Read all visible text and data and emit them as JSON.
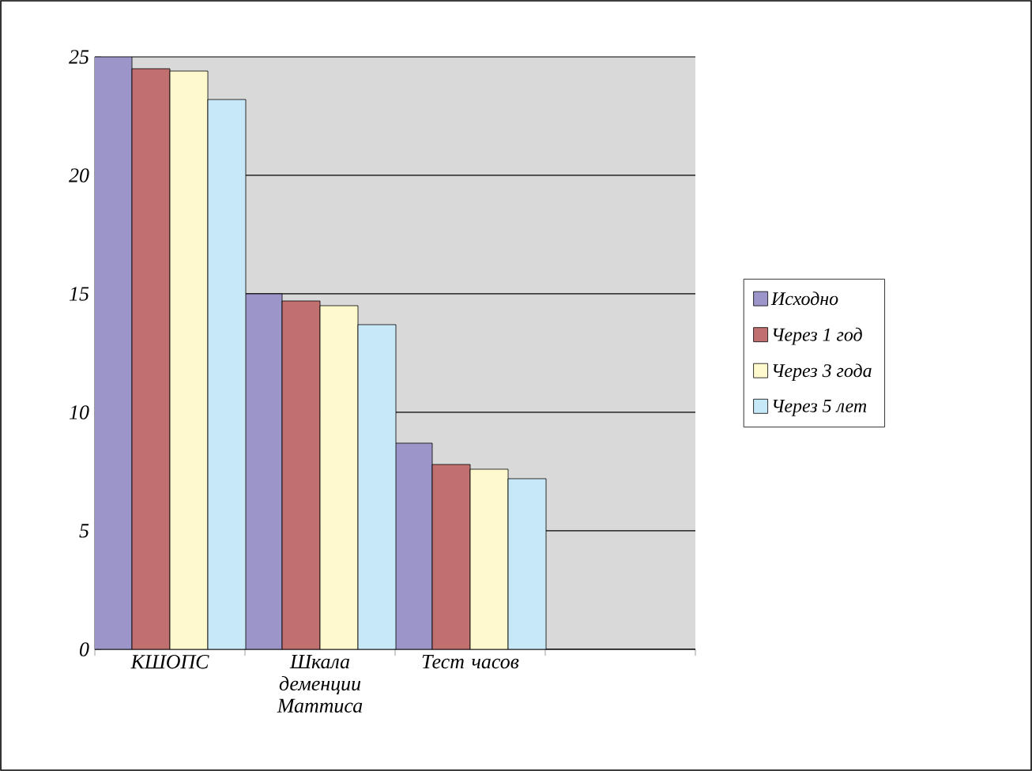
{
  "chart_data": {
    "type": "bar",
    "categories": [
      "КШОПС",
      "Шкала деменции Маттиса",
      "Тест часов",
      null
    ],
    "series": [
      {
        "name": "Исходно",
        "color": "#9b95c9",
        "values": [
          25.0,
          15.0,
          8.7,
          null
        ]
      },
      {
        "name": "Через 1 год",
        "color": "#c0706f",
        "values": [
          24.5,
          14.7,
          7.8,
          null
        ]
      },
      {
        "name": "Через 3 года",
        "color": "#fffacd",
        "values": [
          24.4,
          14.5,
          7.6,
          null
        ]
      },
      {
        "name": "Через 5 лет",
        "color": "#c6e8f7",
        "values": [
          23.2,
          13.7,
          7.2,
          null
        ]
      }
    ],
    "ylim": [
      0,
      25
    ],
    "yticks": [
      0,
      5,
      10,
      15,
      20,
      25
    ],
    "grid": "y",
    "legend": "right"
  }
}
